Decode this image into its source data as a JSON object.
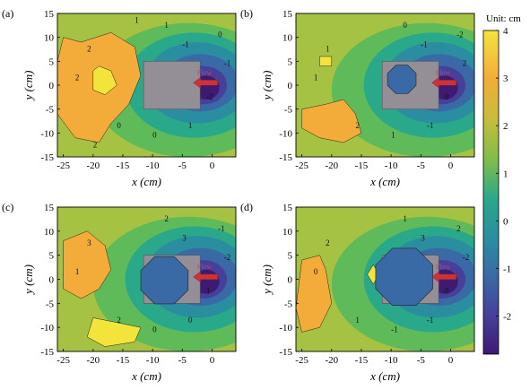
{
  "chart_data": {
    "type": "heatmap",
    "colormap": [
      "#3e1a72",
      "#46409a",
      "#3a6aa6",
      "#2a8ea0",
      "#2aa88a",
      "#5fba5a",
      "#a6c242",
      "#d7bb38",
      "#f3ac3a",
      "#f3e43c"
    ],
    "colorbar": {
      "unit_label": "Unit: cm",
      "range": [
        -2.8,
        4
      ],
      "ticks": [
        4,
        3,
        2,
        1,
        0,
        -1,
        -2
      ],
      "tick_labels": [
        "4",
        "3",
        "2",
        "1",
        "0",
        "-1",
        "-2"
      ]
    },
    "panels": [
      {
        "letter": "(a)",
        "xlabel": "x (cm)",
        "ylabel": "y (cm)",
        "xlim": [
          -26,
          4
        ],
        "ylim": [
          -15,
          15
        ],
        "xticks": [
          -25,
          -20,
          -15,
          -10,
          -5,
          0
        ],
        "yticks": [
          15,
          10,
          5,
          0,
          -5,
          -10,
          -15
        ],
        "block": {
          "x": [
            -11.5,
            -2
          ],
          "y": [
            -5,
            5
          ]
        },
        "hole": "none",
        "flow_label": "Flow",
        "contour_labels": [
          "2",
          "1",
          "2",
          "1",
          "0",
          "-1",
          "0",
          "-2",
          "0",
          "-1",
          "1",
          "2"
        ]
      },
      {
        "letter": "(b)",
        "xlabel": "x (cm)",
        "ylabel": "y (cm)",
        "xlim": [
          -26,
          4
        ],
        "ylim": [
          -15,
          15
        ],
        "xticks": [
          -25,
          -20,
          -15,
          -10,
          -5,
          0
        ],
        "yticks": [
          15,
          10,
          5,
          0,
          -5,
          -10,
          -15
        ],
        "block": {
          "x": [
            -11.5,
            -2
          ],
          "y": [
            -5,
            5
          ]
        },
        "hole": "small_octagon",
        "flow_label": "Flow",
        "contour_labels": [
          "1",
          "0",
          "1",
          "-1",
          "-2",
          "-1",
          "2",
          "0",
          "1",
          "2"
        ]
      },
      {
        "letter": "(c)",
        "xlabel": "x (cm)",
        "ylabel": "y (cm)",
        "xlim": [
          -26,
          4
        ],
        "ylim": [
          -15,
          15
        ],
        "xticks": [
          -25,
          -20,
          -15,
          -10,
          -5,
          0
        ],
        "yticks": [
          15,
          10,
          5,
          0,
          -5,
          -10,
          -15
        ],
        "block": {
          "x": [
            -11.5,
            -2
          ],
          "y": [
            -5,
            5
          ]
        },
        "hole": "large_octagon",
        "flow_label": "Flow",
        "contour_labels": [
          "3",
          "2",
          "1",
          "0",
          "-1",
          "3",
          "2",
          "1",
          "0",
          "-2"
        ]
      },
      {
        "letter": "(d)",
        "xlabel": "x (cm)",
        "ylabel": "y (cm)",
        "xlim": [
          -26,
          4
        ],
        "ylim": [
          -15,
          15
        ],
        "xticks": [
          -25,
          -20,
          -15,
          -10,
          -5,
          0
        ],
        "yticks": [
          15,
          10,
          5,
          0,
          -5,
          -10,
          -15
        ],
        "block": {
          "x": [
            -11.5,
            -2
          ],
          "y": [
            -5,
            5
          ]
        },
        "hole": "larger_octagon",
        "flow_label": "Flow",
        "contour_labels": [
          "2",
          "1",
          "0",
          "-1",
          "2",
          "3",
          "1",
          "0",
          "-1",
          "-2"
        ]
      }
    ]
  }
}
